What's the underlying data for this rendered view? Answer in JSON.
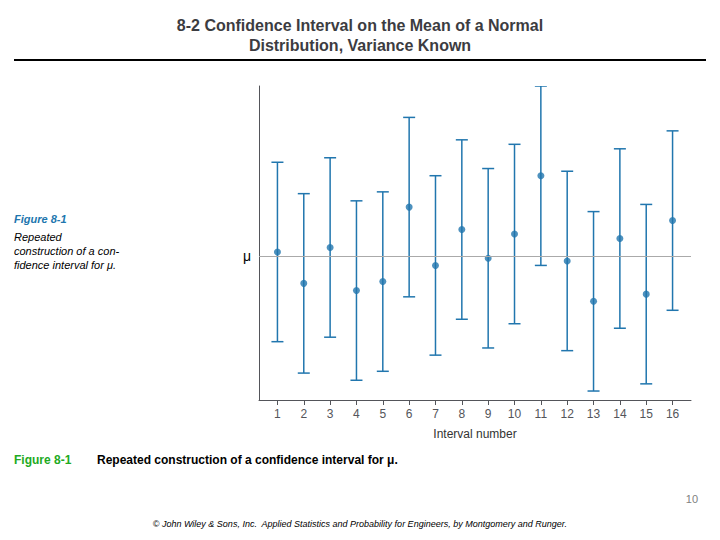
{
  "chart_data": {
    "type": "errorbar",
    "title": "8-2 Confidence Interval on the Mean of a Normal\nDistribution, Variance Known",
    "x": [
      1,
      2,
      3,
      4,
      5,
      6,
      7,
      8,
      9,
      10,
      11,
      12,
      13,
      14,
      15,
      16
    ],
    "values": [
      0.05,
      -0.3,
      0.1,
      -0.38,
      -0.28,
      0.55,
      -0.1,
      0.3,
      -0.02,
      0.25,
      0.9,
      -0.05,
      -0.5,
      0.2,
      -0.42,
      0.4
    ],
    "errors": [
      1.0,
      1.0,
      1.0,
      1.0,
      1.0,
      1.0,
      1.0,
      1.0,
      1.0,
      1.0,
      1.0,
      1.0,
      1.0,
      1.0,
      1.0,
      1.0
    ],
    "color": "#2176AE",
    "xlabel": "Interval number",
    "xlim": [
      0.3,
      16.7
    ],
    "xticks": [
      1,
      2,
      3,
      4,
      5,
      6,
      7,
      8,
      9,
      10,
      11,
      12,
      13,
      14,
      15,
      16
    ],
    "ylim": [
      -1.6,
      1.9
    ],
    "yticks": [
      {
        "value": 0.0,
        "label": "μ"
      }
    ],
    "reference_line": {
      "y": 0.0,
      "color": "#AAAAAA"
    },
    "grid": false,
    "annotations": [
      {
        "text": "Figure 8-1",
        "color": "#2176AE"
      },
      {
        "text": "Repeated\nconstruction of a con-\nfidence interval for μ.",
        "color": "#000000"
      },
      {
        "text": "Figure 8-1",
        "color": "#22AA22"
      },
      {
        "text": "Repeated construction of a confidence interval for μ.",
        "color": "#000000"
      },
      {
        "text": "© John Wiley & Sons, Inc.  Applied Statistics and Probability for Engineers, by Montgomery and Runger.",
        "color": "#000000"
      },
      {
        "text": "10",
        "color": "#808080"
      }
    ]
  }
}
